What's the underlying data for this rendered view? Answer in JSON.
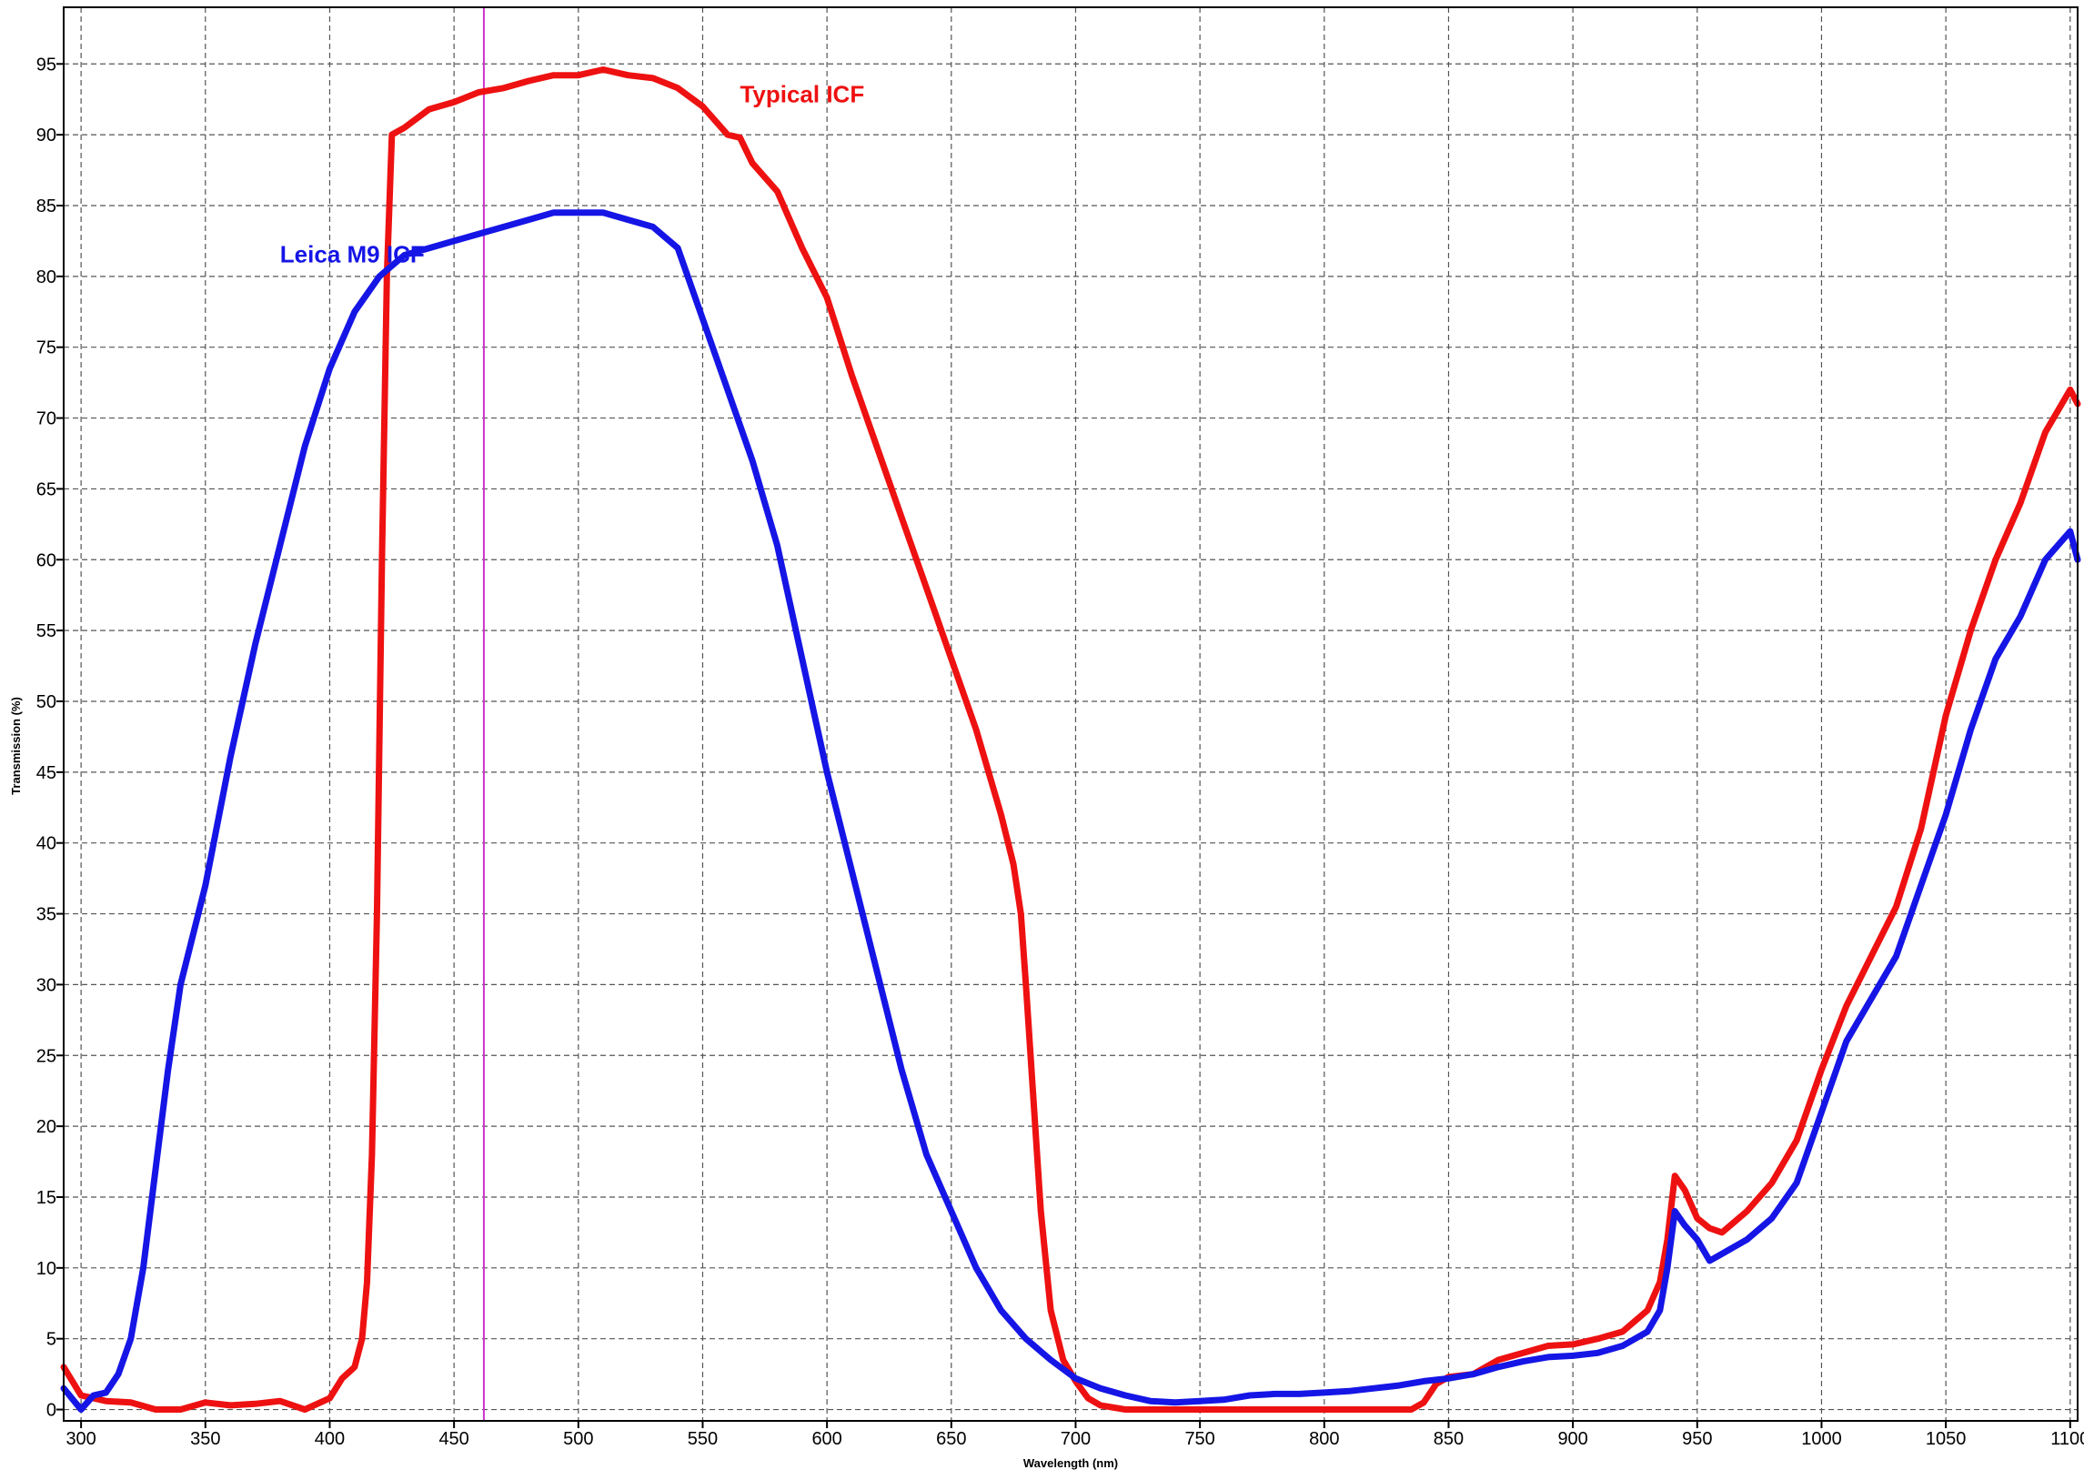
{
  "chart_data": {
    "type": "line",
    "title": "",
    "xlabel": "Wavelength (nm)",
    "ylabel": "Transmission (%)",
    "xlim": [
      293,
      1103
    ],
    "ylim": [
      -0.8,
      99
    ],
    "grid": true,
    "legend": "inline labels",
    "x_ticks": [
      300,
      350,
      400,
      450,
      500,
      550,
      600,
      650,
      700,
      750,
      800,
      850,
      900,
      950,
      1000,
      1050,
      1100
    ],
    "y_ticks": [
      0,
      5,
      10,
      15,
      20,
      25,
      30,
      35,
      40,
      45,
      50,
      55,
      60,
      65,
      70,
      75,
      80,
      85,
      90,
      95
    ],
    "marker_line": {
      "x": 462,
      "color": "#cc33cc"
    },
    "series": [
      {
        "name": "Typical ICF",
        "color": "#ee1111",
        "label_at": [
          565,
          92.3
        ],
        "points": [
          [
            293,
            3
          ],
          [
            300,
            1
          ],
          [
            310,
            0.6
          ],
          [
            320,
            0.5
          ],
          [
            330,
            0
          ],
          [
            340,
            0
          ],
          [
            350,
            0.5
          ],
          [
            360,
            0.3
          ],
          [
            370,
            0.4
          ],
          [
            380,
            0.6
          ],
          [
            390,
            0
          ],
          [
            400,
            0.8
          ],
          [
            405,
            2.2
          ],
          [
            410,
            3
          ],
          [
            413,
            5
          ],
          [
            415,
            9
          ],
          [
            417,
            18
          ],
          [
            419,
            35
          ],
          [
            421,
            60
          ],
          [
            423,
            80
          ],
          [
            425,
            90
          ],
          [
            430,
            90.5
          ],
          [
            440,
            91.8
          ],
          [
            450,
            92.3
          ],
          [
            460,
            93
          ],
          [
            470,
            93.3
          ],
          [
            480,
            93.8
          ],
          [
            490,
            94.2
          ],
          [
            500,
            94.2
          ],
          [
            510,
            94.6
          ],
          [
            520,
            94.2
          ],
          [
            530,
            94
          ],
          [
            540,
            93.3
          ],
          [
            550,
            92
          ],
          [
            560,
            90
          ],
          [
            565,
            89.8
          ],
          [
            570,
            88
          ],
          [
            580,
            86
          ],
          [
            590,
            82
          ],
          [
            600,
            78.5
          ],
          [
            610,
            73
          ],
          [
            620,
            68
          ],
          [
            630,
            63
          ],
          [
            640,
            58
          ],
          [
            650,
            53
          ],
          [
            660,
            48
          ],
          [
            670,
            42
          ],
          [
            675,
            38.5
          ],
          [
            678,
            35
          ],
          [
            680,
            30
          ],
          [
            683,
            22
          ],
          [
            686,
            14
          ],
          [
            690,
            7
          ],
          [
            695,
            3.5
          ],
          [
            700,
            2
          ],
          [
            705,
            0.8
          ],
          [
            710,
            0.3
          ],
          [
            720,
            0
          ],
          [
            740,
            0
          ],
          [
            760,
            0
          ],
          [
            780,
            0
          ],
          [
            800,
            0
          ],
          [
            820,
            0
          ],
          [
            835,
            0
          ],
          [
            840,
            0.5
          ],
          [
            845,
            1.8
          ],
          [
            850,
            2.3
          ],
          [
            860,
            2.5
          ],
          [
            870,
            3.5
          ],
          [
            880,
            4
          ],
          [
            890,
            4.5
          ],
          [
            900,
            4.6
          ],
          [
            910,
            5
          ],
          [
            920,
            5.5
          ],
          [
            930,
            7
          ],
          [
            935,
            9
          ],
          [
            938,
            12
          ],
          [
            941,
            16.5
          ],
          [
            945,
            15.5
          ],
          [
            950,
            13.5
          ],
          [
            955,
            12.8
          ],
          [
            960,
            12.5
          ],
          [
            970,
            14
          ],
          [
            980,
            16
          ],
          [
            990,
            19
          ],
          [
            1000,
            24
          ],
          [
            1010,
            28.5
          ],
          [
            1020,
            32
          ],
          [
            1030,
            35.5
          ],
          [
            1040,
            41
          ],
          [
            1050,
            49
          ],
          [
            1060,
            55
          ],
          [
            1070,
            60
          ],
          [
            1080,
            64
          ],
          [
            1090,
            69
          ],
          [
            1100,
            72
          ],
          [
            1103,
            71
          ]
        ]
      },
      {
        "name": "Leica M9 ICF",
        "color": "#1515e6",
        "label_at": [
          380,
          81
        ],
        "points": [
          [
            293,
            1.5
          ],
          [
            300,
            0
          ],
          [
            305,
            1
          ],
          [
            310,
            1.2
          ],
          [
            315,
            2.5
          ],
          [
            320,
            5
          ],
          [
            325,
            10
          ],
          [
            330,
            17
          ],
          [
            335,
            24
          ],
          [
            340,
            30
          ],
          [
            350,
            37
          ],
          [
            360,
            46
          ],
          [
            370,
            54
          ],
          [
            380,
            61
          ],
          [
            390,
            68
          ],
          [
            400,
            73.5
          ],
          [
            410,
            77.5
          ],
          [
            420,
            80
          ],
          [
            430,
            81.5
          ],
          [
            440,
            82
          ],
          [
            450,
            82.5
          ],
          [
            460,
            83
          ],
          [
            470,
            83.5
          ],
          [
            480,
            84
          ],
          [
            490,
            84.5
          ],
          [
            500,
            84.5
          ],
          [
            510,
            84.5
          ],
          [
            520,
            84
          ],
          [
            530,
            83.5
          ],
          [
            540,
            82
          ],
          [
            550,
            77
          ],
          [
            560,
            72
          ],
          [
            570,
            67
          ],
          [
            580,
            61
          ],
          [
            590,
            53
          ],
          [
            600,
            45
          ],
          [
            610,
            38
          ],
          [
            620,
            31
          ],
          [
            630,
            24
          ],
          [
            640,
            18
          ],
          [
            650,
            14
          ],
          [
            660,
            10
          ],
          [
            670,
            7
          ],
          [
            680,
            5
          ],
          [
            690,
            3.5
          ],
          [
            700,
            2.2
          ],
          [
            710,
            1.5
          ],
          [
            720,
            1
          ],
          [
            730,
            0.6
          ],
          [
            740,
            0.5
          ],
          [
            750,
            0.6
          ],
          [
            760,
            0.7
          ],
          [
            770,
            1
          ],
          [
            780,
            1.1
          ],
          [
            790,
            1.1
          ],
          [
            800,
            1.2
          ],
          [
            810,
            1.3
          ],
          [
            820,
            1.5
          ],
          [
            830,
            1.7
          ],
          [
            840,
            2
          ],
          [
            850,
            2.2
          ],
          [
            860,
            2.5
          ],
          [
            870,
            3
          ],
          [
            880,
            3.4
          ],
          [
            890,
            3.7
          ],
          [
            900,
            3.8
          ],
          [
            910,
            4
          ],
          [
            920,
            4.5
          ],
          [
            930,
            5.5
          ],
          [
            935,
            7
          ],
          [
            938,
            10
          ],
          [
            941,
            14
          ],
          [
            945,
            13
          ],
          [
            950,
            12
          ],
          [
            955,
            10.5
          ],
          [
            960,
            11
          ],
          [
            970,
            12
          ],
          [
            980,
            13.5
          ],
          [
            990,
            16
          ],
          [
            1000,
            21
          ],
          [
            1010,
            26
          ],
          [
            1020,
            29
          ],
          [
            1030,
            32
          ],
          [
            1040,
            37
          ],
          [
            1050,
            42
          ],
          [
            1060,
            48
          ],
          [
            1070,
            53
          ],
          [
            1080,
            56
          ],
          [
            1090,
            60
          ],
          [
            1100,
            62
          ],
          [
            1103,
            60
          ]
        ]
      }
    ]
  }
}
